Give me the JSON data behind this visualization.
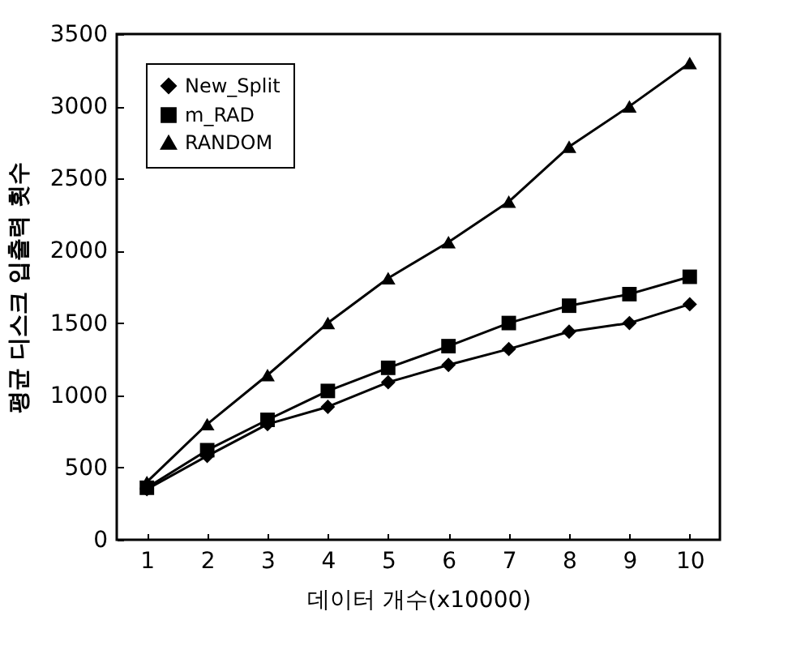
{
  "chart_data": {
    "type": "line",
    "xlabel": "데이터 개수(x10000)",
    "ylabel": "평균 디스크 입출력 횟수",
    "categories": [
      "1",
      "2",
      "3",
      "4",
      "5",
      "6",
      "7",
      "8",
      "9",
      "10"
    ],
    "ylim": [
      0,
      3500
    ],
    "yticks": [
      0,
      500,
      1000,
      1500,
      2000,
      2500,
      3000,
      3500
    ],
    "grid": false,
    "legend": "top left",
    "line_style": "solid",
    "series": [
      {
        "name": "New_Split",
        "color": "#000000",
        "marker": "diamond",
        "values": [
          350,
          580,
          800,
          920,
          1090,
          1210,
          1320,
          1440,
          1500,
          1630
        ]
      },
      {
        "name": "m_RAD",
        "color": "#000000",
        "marker": "square",
        "values": [
          360,
          620,
          830,
          1030,
          1190,
          1340,
          1500,
          1620,
          1700,
          1820
        ]
      },
      {
        "name": "RANDOM",
        "color": "#000000",
        "marker": "triangle",
        "values": [
          400,
          800,
          1140,
          1500,
          1810,
          2060,
          2340,
          2720,
          3000,
          3300
        ]
      }
    ]
  }
}
